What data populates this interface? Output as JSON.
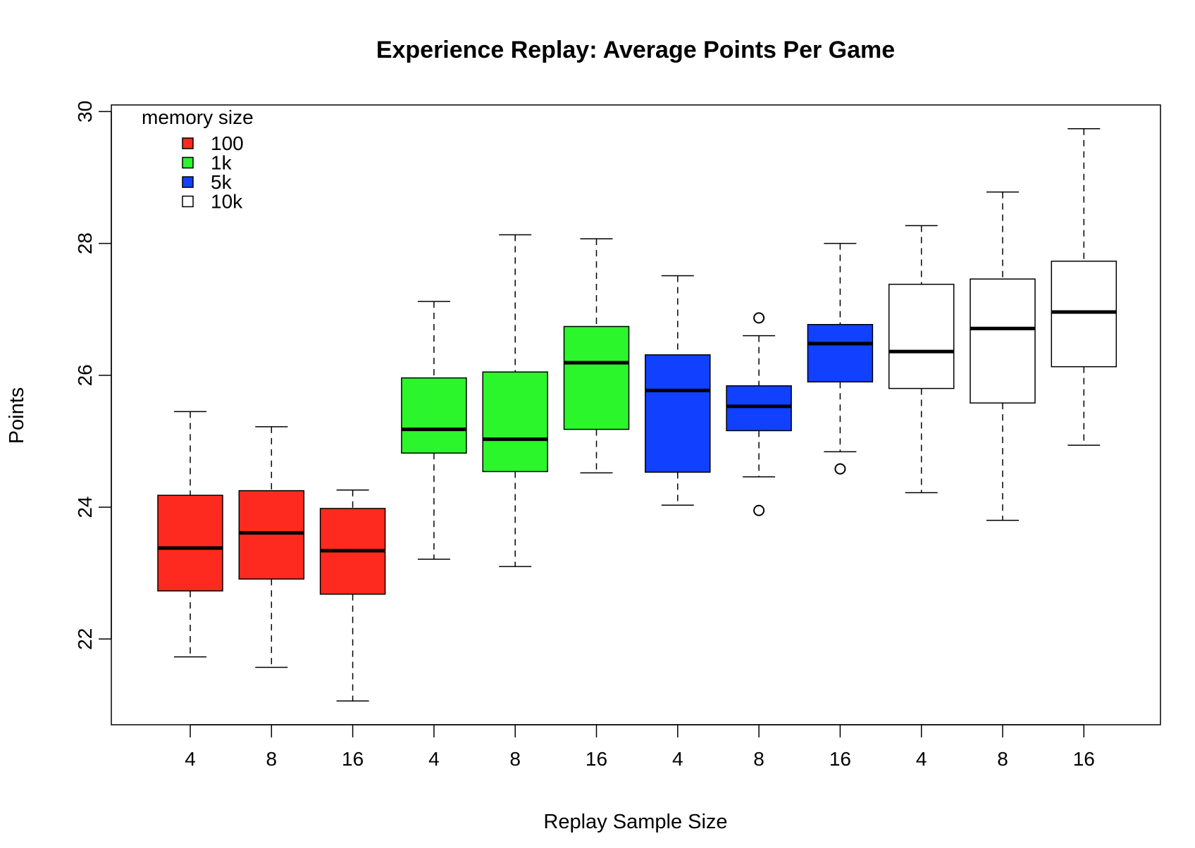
{
  "chart_data": {
    "type": "boxplot",
    "title": "Experience Replay: Average Points Per Game",
    "xlabel": "Replay Sample Size",
    "ylabel": "Points",
    "ylim": [
      20.7,
      30.1
    ],
    "yticks": [
      22,
      24,
      26,
      28,
      30
    ],
    "grid": false,
    "legend": {
      "title": "memory size",
      "position": "top-left",
      "entries": [
        {
          "label": "100",
          "color": "#ff2a1f"
        },
        {
          "label": "1k",
          "color": "#2bf52b"
        },
        {
          "label": "5k",
          "color": "#1140ff"
        },
        {
          "label": "10k",
          "color": "#ffffff"
        }
      ]
    },
    "boxes": [
      {
        "label": "4",
        "group": "100",
        "color": "#ff2a1f",
        "whisker_low": 21.73,
        "q1": 22.73,
        "median": 23.38,
        "q3": 24.18,
        "whisker_high": 25.45,
        "outliers": []
      },
      {
        "label": "8",
        "group": "100",
        "color": "#ff2a1f",
        "whisker_low": 21.57,
        "q1": 22.91,
        "median": 23.61,
        "q3": 24.25,
        "whisker_high": 25.22,
        "outliers": []
      },
      {
        "label": "16",
        "group": "100",
        "color": "#ff2a1f",
        "whisker_low": 21.06,
        "q1": 22.68,
        "median": 23.34,
        "q3": 23.98,
        "whisker_high": 24.26,
        "outliers": []
      },
      {
        "label": "4",
        "group": "1k",
        "color": "#2bf52b",
        "whisker_low": 23.21,
        "q1": 24.82,
        "median": 25.18,
        "q3": 25.96,
        "whisker_high": 27.12,
        "outliers": []
      },
      {
        "label": "8",
        "group": "1k",
        "color": "#2bf52b",
        "whisker_low": 23.1,
        "q1": 24.54,
        "median": 25.03,
        "q3": 26.05,
        "whisker_high": 28.13,
        "outliers": []
      },
      {
        "label": "16",
        "group": "1k",
        "color": "#2bf52b",
        "whisker_low": 24.52,
        "q1": 25.18,
        "median": 26.19,
        "q3": 26.74,
        "whisker_high": 28.07,
        "outliers": []
      },
      {
        "label": "4",
        "group": "5k",
        "color": "#1140ff",
        "whisker_low": 24.03,
        "q1": 24.53,
        "median": 25.77,
        "q3": 26.31,
        "whisker_high": 27.51,
        "outliers": []
      },
      {
        "label": "8",
        "group": "5k",
        "color": "#1140ff",
        "whisker_low": 24.46,
        "q1": 25.16,
        "median": 25.53,
        "q3": 25.84,
        "whisker_high": 26.6,
        "outliers": [
          23.95,
          26.87
        ]
      },
      {
        "label": "16",
        "group": "5k",
        "color": "#1140ff",
        "whisker_low": 24.84,
        "q1": 25.9,
        "median": 26.48,
        "q3": 26.77,
        "whisker_high": 28.0,
        "outliers": [
          24.58
        ]
      },
      {
        "label": "4",
        "group": "10k",
        "color": "#ffffff",
        "whisker_low": 24.22,
        "q1": 25.8,
        "median": 26.36,
        "q3": 27.38,
        "whisker_high": 28.27,
        "outliers": []
      },
      {
        "label": "8",
        "group": "10k",
        "color": "#ffffff",
        "whisker_low": 23.8,
        "q1": 25.58,
        "median": 26.71,
        "q3": 27.46,
        "whisker_high": 28.78,
        "outliers": []
      },
      {
        "label": "16",
        "group": "10k",
        "color": "#ffffff",
        "whisker_low": 24.94,
        "q1": 26.13,
        "median": 26.96,
        "q3": 27.73,
        "whisker_high": 29.74,
        "outliers": []
      }
    ]
  }
}
